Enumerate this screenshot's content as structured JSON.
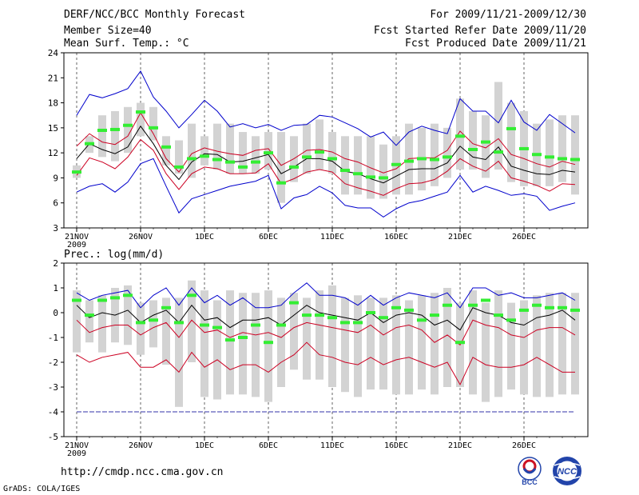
{
  "header": {
    "title": "DERF/NCC/BCC Monthly Forecast",
    "member_size": "Member Size=40",
    "variable": "Mean Surf. Temp.: °C",
    "period": "For 2009/11/21-2009/12/30",
    "started": "Fcst Started Refer Date 2009/11/20",
    "produced": "Fcst Produced Date 2009/11/21"
  },
  "footer": {
    "url": "http://cmdp.ncc.cma.gov.cn",
    "grads": "GrADS: COLA/IGES",
    "logo1_text": "BCC",
    "logo2_text": "NCC"
  },
  "colors": {
    "max_min": "#0000cc",
    "sd": "#cc0022",
    "mean": "#000000",
    "median": "#33ee33",
    "box": "#d3d3d3",
    "floor": "#3333aa"
  },
  "chart_data": [
    {
      "type": "line",
      "title": "Mean Surf. Temp.: °C",
      "ylim": [
        3,
        24
      ],
      "yticks": [
        3,
        6,
        9,
        12,
        15,
        18,
        21,
        24
      ],
      "xtick_labels": [
        "21NOV",
        "26NOV",
        "1DEC",
        "6DEC",
        "11DEC",
        "16DEC",
        "21DEC",
        "26DEC"
      ],
      "xtick_days": [
        1,
        6,
        11,
        16,
        21,
        26,
        31,
        36
      ],
      "year_label": "2009",
      "box_low": [
        9.0,
        12.0,
        11.5,
        11.0,
        12.0,
        14.0,
        13.5,
        10.5,
        9.5,
        9.0,
        10.5,
        10.0,
        9.5,
        9.5,
        9.5,
        10.0,
        6.0,
        8.5,
        9.5,
        10.0,
        9.5,
        7.0,
        7.0,
        6.5,
        6.5,
        7.0,
        7.0,
        7.5,
        8.0,
        9.0,
        10.0,
        10.0,
        9.0,
        10.0,
        8.5,
        8.0,
        8.0,
        8.0,
        8.5,
        7.0
      ],
      "box_high": [
        10.5,
        14.0,
        16.5,
        17.0,
        17.5,
        18.0,
        17.5,
        14.0,
        13.5,
        15.5,
        14.0,
        15.5,
        15.5,
        14.5,
        14.0,
        14.5,
        14.5,
        14.0,
        15.5,
        16.0,
        14.5,
        14.0,
        14.0,
        14.0,
        13.0,
        14.0,
        15.5,
        15.0,
        15.5,
        15.0,
        18.5,
        17.0,
        16.5,
        20.5,
        18.0,
        17.0,
        15.5,
        16.0,
        16.5,
        16.5
      ],
      "series": [
        {
          "name": "max",
          "values": [
            7.3,
            8.0,
            8.3,
            7.3,
            8.5,
            10.7,
            11.3,
            8.0,
            4.8,
            6.5,
            7.0,
            7.5,
            8.0,
            8.3,
            8.6,
            9.3,
            5.3,
            6.6,
            7.0,
            8.0,
            7.2,
            5.7,
            5.4,
            5.4,
            4.3,
            5.3,
            6.0,
            6.3,
            6.8,
            7.3,
            9.3,
            7.3,
            8.0,
            7.5,
            6.9,
            7.1,
            6.8,
            5.1,
            5.6,
            6.0
          ]
        },
        {
          "name": "max_upper",
          "values": [
            16.5,
            19.0,
            18.6,
            19.1,
            19.7,
            21.8,
            18.7,
            17.0,
            15.0,
            16.6,
            18.3,
            17.0,
            15.1,
            15.5,
            15.0,
            15.4,
            14.7,
            15.3,
            15.4,
            16.5,
            16.3,
            15.6,
            14.9,
            13.9,
            14.5,
            12.9,
            14.5,
            15.2,
            14.7,
            14.3,
            18.5,
            17.0,
            17.0,
            15.6,
            18.3,
            15.7,
            14.7,
            16.6,
            15.5,
            14.4
          ]
        },
        {
          "name": "sd_upper",
          "values": [
            12.8,
            14.3,
            13.3,
            13.0,
            14.0,
            16.8,
            14.3,
            11.3,
            9.7,
            11.9,
            12.6,
            12.2,
            11.9,
            11.7,
            12.3,
            12.5,
            10.5,
            11.3,
            12.3,
            12.4,
            12.1,
            11.3,
            10.9,
            10.2,
            9.6,
            10.1,
            11.3,
            11.4,
            11.4,
            12.3,
            14.6,
            13.1,
            12.6,
            13.7,
            11.8,
            11.3,
            10.7,
            10.3,
            11.0,
            10.6
          ]
        },
        {
          "name": "mean",
          "values": [
            11.3,
            13.1,
            12.4,
            11.9,
            12.7,
            15.2,
            13.1,
            10.5,
            8.8,
            10.9,
            11.9,
            11.8,
            10.9,
            11.0,
            11.4,
            11.8,
            9.5,
            10.3,
            11.3,
            11.3,
            11.0,
            9.8,
            9.5,
            8.9,
            8.4,
            9.2,
            10.0,
            10.1,
            10.1,
            10.8,
            12.8,
            11.5,
            11.2,
            12.7,
            10.4,
            9.9,
            9.5,
            9.4,
            9.9,
            9.7
          ]
        },
        {
          "name": "sd_lower",
          "values": [
            9.3,
            11.4,
            10.9,
            10.1,
            11.5,
            13.6,
            12.3,
            9.5,
            7.6,
            9.5,
            10.3,
            10.1,
            9.5,
            9.5,
            9.6,
            10.7,
            8.3,
            8.9,
            9.7,
            10.0,
            9.7,
            8.3,
            7.8,
            7.4,
            6.9,
            7.7,
            8.3,
            8.4,
            8.8,
            9.8,
            11.3,
            10.4,
            9.8,
            11.0,
            9.0,
            8.6,
            8.1,
            7.4,
            8.3,
            8.2
          ]
        }
      ],
      "median": [
        9.7,
        13.1,
        14.7,
        14.8,
        15.3,
        16.9,
        15.0,
        12.7,
        10.3,
        11.3,
        11.6,
        11.2,
        10.9,
        10.3,
        10.9,
        12.0,
        8.4,
        10.3,
        11.5,
        12.1,
        11.3,
        9.9,
        9.5,
        9.1,
        9.0,
        10.6,
        11.0,
        11.3,
        11.2,
        11.5,
        14.0,
        12.4,
        13.3,
        12.1,
        14.9,
        12.5,
        11.8,
        11.5,
        11.3,
        11.2
      ]
    },
    {
      "type": "line",
      "title": "Prec.: log(mm/d)",
      "ylim": [
        -5,
        2
      ],
      "yticks": [
        -5,
        -4,
        -3,
        -2,
        -1,
        0,
        1,
        2
      ],
      "xtick_labels": [
        "21NOV",
        "26NOV",
        "1DEC",
        "6DEC",
        "11DEC",
        "16DEC",
        "21DEC",
        "26DEC"
      ],
      "xtick_days": [
        1,
        6,
        11,
        16,
        21,
        26,
        31,
        36
      ],
      "year_label": "2009",
      "floor": -4,
      "box_low": [
        -1.6,
        -1.2,
        -1.6,
        -1.2,
        -1.3,
        -1.7,
        -1.4,
        -2.1,
        -3.8,
        -2.0,
        -3.4,
        -3.5,
        -3.3,
        -3.3,
        -3.4,
        -3.6,
        -3.0,
        -2.3,
        -2.7,
        -2.7,
        -3.0,
        -3.2,
        -3.4,
        -3.1,
        -3.1,
        -3.3,
        -3.3,
        -3.1,
        -3.3,
        -3.0,
        -3.0,
        -3.3,
        -3.6,
        -3.4,
        -3.1,
        -3.3,
        -3.4,
        -3.4,
        -3.3,
        -3.3
      ],
      "box_high": [
        0.9,
        0.5,
        0.7,
        1.0,
        1.1,
        0.4,
        0.5,
        0.6,
        0.6,
        1.3,
        0.9,
        0.5,
        0.9,
        0.8,
        0.8,
        0.9,
        0.6,
        0.8,
        0.6,
        0.9,
        1.1,
        0.6,
        0.7,
        0.6,
        0.6,
        0.7,
        0.5,
        0.7,
        0.8,
        1.0,
        0.4,
        0.9,
        0.4,
        0.9,
        0.4,
        0.5,
        0.7,
        0.8,
        0.8,
        0.8
      ],
      "series": [
        {
          "name": "max",
          "values": [
            0.8,
            0.5,
            0.7,
            0.8,
            0.9,
            0.2,
            0.7,
            1.0,
            0.3,
            1.0,
            0.4,
            0.7,
            0.3,
            0.6,
            0.2,
            0.2,
            0.3,
            0.8,
            1.2,
            0.7,
            0.7,
            0.6,
            0.3,
            0.7,
            0.3,
            0.6,
            0.8,
            0.7,
            0.6,
            0.8,
            0.2,
            1.0,
            1.0,
            0.7,
            0.8,
            0.6,
            0.6,
            0.7,
            0.8,
            0.5
          ]
        },
        {
          "name": "mean",
          "values": [
            0.3,
            -0.2,
            0.0,
            -0.1,
            0.1,
            -0.4,
            -0.1,
            0.1,
            -0.4,
            0.3,
            -0.3,
            -0.2,
            -0.6,
            -0.3,
            -0.3,
            -0.2,
            -0.5,
            -0.1,
            0.3,
            0.0,
            -0.1,
            -0.2,
            -0.3,
            0.0,
            -0.4,
            -0.1,
            0.0,
            -0.1,
            -0.5,
            -0.3,
            -0.7,
            0.2,
            0.0,
            -0.1,
            -0.4,
            -0.5,
            -0.2,
            -0.1,
            0.1,
            -0.3
          ]
        },
        {
          "name": "sd_upper",
          "values": [
            -0.3,
            -0.8,
            -0.6,
            -0.5,
            -0.5,
            -0.9,
            -0.6,
            -0.4,
            -1.0,
            -0.3,
            -0.8,
            -0.7,
            -1.0,
            -0.8,
            -0.9,
            -0.8,
            -1.0,
            -0.6,
            -0.4,
            -0.5,
            -0.6,
            -0.7,
            -0.8,
            -0.5,
            -0.9,
            -0.6,
            -0.5,
            -0.7,
            -1.2,
            -0.9,
            -1.3,
            -0.3,
            -0.5,
            -0.6,
            -0.9,
            -1.0,
            -0.7,
            -0.6,
            -0.6,
            -0.9
          ]
        },
        {
          "name": "sd_lower",
          "values": [
            -1.7,
            -2.0,
            -1.8,
            -1.7,
            -1.6,
            -2.2,
            -2.2,
            -1.9,
            -2.4,
            -1.6,
            -2.2,
            -1.9,
            -2.3,
            -2.1,
            -2.1,
            -2.4,
            -2.0,
            -1.7,
            -1.2,
            -1.7,
            -1.8,
            -2.0,
            -2.1,
            -1.8,
            -2.1,
            -1.9,
            -1.8,
            -2.0,
            -2.2,
            -2.0,
            -2.9,
            -1.8,
            -2.1,
            -2.2,
            -2.2,
            -2.1,
            -1.8,
            -2.1,
            -2.4,
            -2.4
          ]
        }
      ],
      "median": [
        0.5,
        -0.1,
        0.5,
        0.6,
        0.7,
        -0.4,
        -0.3,
        0.2,
        -0.4,
        0.7,
        -0.5,
        -0.6,
        -1.1,
        -1.0,
        -0.5,
        -1.2,
        -0.5,
        0.4,
        -0.1,
        -0.1,
        -0.2,
        -0.4,
        -0.4,
        0.0,
        -0.2,
        0.2,
        0.1,
        -0.3,
        -0.1,
        0.3,
        -1.2,
        0.3,
        0.5,
        -0.1,
        -0.3,
        0.1,
        0.3,
        0.2,
        0.2,
        0.1
      ]
    }
  ]
}
